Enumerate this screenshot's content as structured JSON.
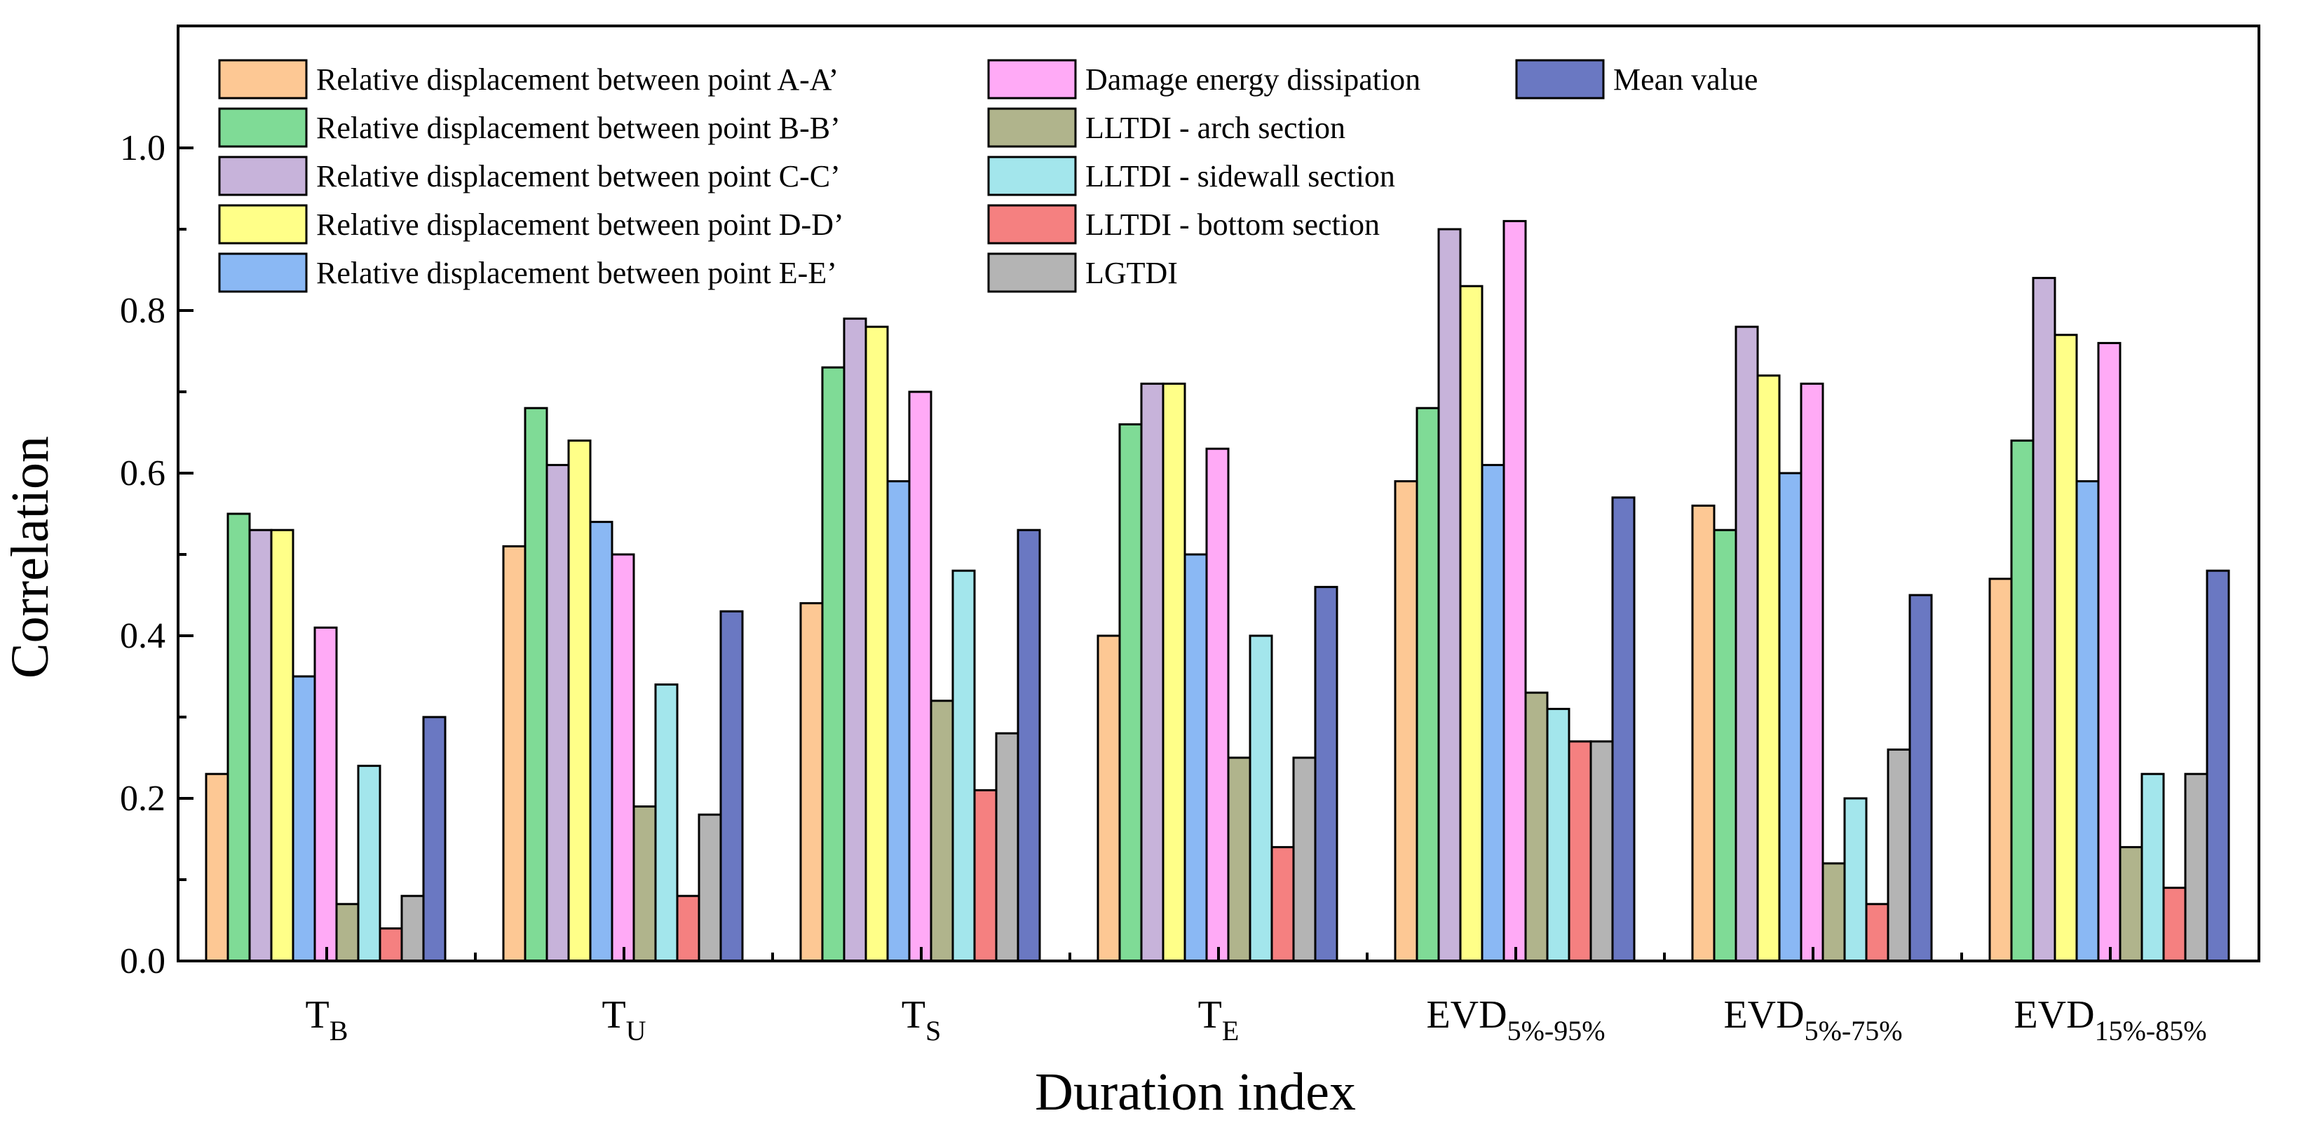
{
  "chart_data": {
    "type": "bar",
    "title": "",
    "xlabel": "Duration index",
    "ylabel": "Correlation",
    "ylim": [
      0,
      1.15
    ],
    "yticks": [
      "0.0",
      "0.2",
      "0.4",
      "0.6",
      "0.8",
      "1.0"
    ],
    "grid": false,
    "legend_position": "top-left",
    "categories": [
      {
        "main": "T",
        "sub": "B"
      },
      {
        "main": "T",
        "sub": "U"
      },
      {
        "main": "T",
        "sub": "S"
      },
      {
        "main": "T",
        "sub": "E"
      },
      {
        "main": "EVD",
        "sub": "5%-95%"
      },
      {
        "main": "EVD",
        "sub": "5%-75%"
      },
      {
        "main": "EVD",
        "sub": "15%-85%"
      }
    ],
    "series": [
      {
        "name": "Relative displacement between point A-A’",
        "color": "#FDC894",
        "values": [
          0.23,
          0.51,
          0.44,
          0.4,
          0.59,
          0.56,
          0.47
        ]
      },
      {
        "name": "Relative displacement between point B-B’",
        "color": "#7FDB96",
        "values": [
          0.55,
          0.68,
          0.73,
          0.66,
          0.68,
          0.53,
          0.64
        ]
      },
      {
        "name": "Relative displacement between point C-C’",
        "color": "#C7B3DA",
        "values": [
          0.53,
          0.61,
          0.79,
          0.71,
          0.9,
          0.78,
          0.84
        ]
      },
      {
        "name": "Relative displacement between point D-D’",
        "color": "#FFFF88",
        "values": [
          0.53,
          0.64,
          0.78,
          0.71,
          0.83,
          0.72,
          0.77
        ]
      },
      {
        "name": "Relative displacement between point E-E’",
        "color": "#8AB8F4",
        "values": [
          0.35,
          0.54,
          0.59,
          0.5,
          0.61,
          0.6,
          0.59
        ]
      },
      {
        "name": "Damage energy dissipation",
        "color": "#FFAAF6",
        "values": [
          0.41,
          0.5,
          0.7,
          0.63,
          0.91,
          0.71,
          0.76
        ]
      },
      {
        "name": "LLTDI - arch section",
        "color": "#B0B48C",
        "values": [
          0.07,
          0.19,
          0.32,
          0.25,
          0.33,
          0.12,
          0.14
        ]
      },
      {
        "name": "LLTDI - sidewall section",
        "color": "#A3E6EC",
        "values": [
          0.24,
          0.34,
          0.48,
          0.4,
          0.31,
          0.2,
          0.23
        ]
      },
      {
        "name": "LLTDI - bottom section",
        "color": "#F58080",
        "values": [
          0.04,
          0.08,
          0.21,
          0.14,
          0.27,
          0.07,
          0.09
        ]
      },
      {
        "name": "LGTDI",
        "color": "#B4B4B4",
        "values": [
          0.08,
          0.18,
          0.28,
          0.25,
          0.27,
          0.26,
          0.23
        ]
      },
      {
        "name": "Mean value",
        "color": "#6A78C2",
        "values": [
          0.3,
          0.43,
          0.53,
          0.46,
          0.57,
          0.45,
          0.48
        ]
      }
    ]
  }
}
